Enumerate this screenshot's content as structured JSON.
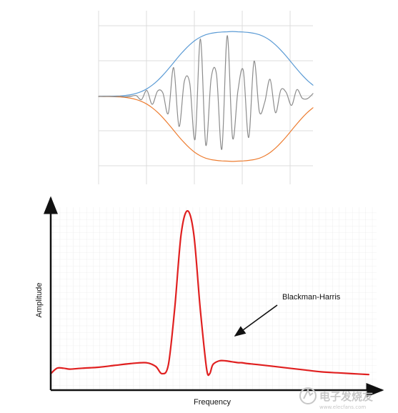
{
  "chart_data": [
    {
      "type": "line",
      "grid": true,
      "x": [
        -5,
        -4.75,
        -4.5,
        -4.25,
        -4,
        -3.75,
        -3.5,
        -3.25,
        -3,
        -2.75,
        -2.5,
        -2.25,
        -2,
        -1.75,
        -1.5,
        -1.25,
        -1,
        -0.75,
        -0.5,
        -0.25,
        0,
        0.25,
        0.5,
        0.75,
        1,
        1.25,
        1.5,
        1.75,
        2,
        2.25,
        2.5,
        2.75,
        3,
        3.25,
        3.5,
        3.75,
        4,
        4.25,
        4.5,
        4.75,
        5
      ],
      "xlim": [
        -5,
        5
      ],
      "ylim": [
        -1.1,
        1.1
      ],
      "series": [
        {
          "values": [
            0.0,
            0.001,
            0.002,
            0.004,
            0.008,
            0.015,
            0.027,
            0.047,
            0.076,
            0.118,
            0.174,
            0.244,
            0.328,
            0.422,
            0.521,
            0.621,
            0.713,
            0.795,
            0.863,
            0.914,
            0.95,
            0.972,
            0.985,
            0.992,
            0.996,
            1.0,
            0.996,
            0.992,
            0.985,
            0.972,
            0.95,
            0.914,
            0.863,
            0.795,
            0.713,
            0.621,
            0.521,
            0.422,
            0.328,
            0.244,
            0.174
          ],
          "color": "#5b9bd5"
        },
        {
          "values": [
            -0.0,
            -0.001,
            -0.002,
            -0.004,
            -0.008,
            -0.015,
            -0.027,
            -0.047,
            -0.076,
            -0.118,
            -0.174,
            -0.244,
            -0.328,
            -0.422,
            -0.521,
            -0.621,
            -0.713,
            -0.795,
            -0.863,
            -0.914,
            -0.95,
            -0.972,
            -0.985,
            -0.992,
            -0.996,
            -1.0,
            -0.996,
            -0.992,
            -0.985,
            -0.972,
            -0.95,
            -0.914,
            -0.863,
            -0.795,
            -0.713,
            -0.621,
            -0.521,
            -0.422,
            -0.328,
            -0.244,
            -0.174
          ],
          "color": "#ed7d31"
        },
        {
          "values": [
            0.0,
            0.0,
            0.001,
            -0.002,
            0.004,
            -0.005,
            0.001,
            0.014,
            -0.048,
            0.094,
            -0.121,
            0.083,
            0.053,
            -0.261,
            0.444,
            -0.461,
            0.234,
            0.207,
            -0.658,
            0.886,
            -0.749,
            0.279,
            0.338,
            -0.811,
            0.936,
            -0.638,
            0.089,
            0.4,
            -0.632,
            0.542,
            -0.236,
            -0.088,
            0.264,
            -0.25,
            0.099,
            0.063,
            -0.138,
            0.106,
            -0.027,
            -0.032,
            0.045
          ],
          "color": "#8c8c8c"
        }
      ]
    },
    {
      "type": "line",
      "title": "",
      "xlabel": "Frequency",
      "ylabel": "Amplitude",
      "grid": true,
      "x": [
        0,
        0.02,
        0.04,
        0.06,
        0.1,
        0.15,
        0.2,
        0.25,
        0.3,
        0.33,
        0.35,
        0.37,
        0.39,
        0.41,
        0.43,
        0.45,
        0.47,
        0.49,
        0.5,
        0.51,
        0.53,
        0.55,
        0.57,
        0.59,
        0.6,
        0.62,
        0.65,
        0.7,
        0.75,
        0.8,
        0.85,
        0.9,
        0.95,
        1.0
      ],
      "xlim": [
        0,
        1.0
      ],
      "ylim": [
        0,
        1.0
      ],
      "series": [
        {
          "values": [
            0.09,
            0.12,
            0.12,
            0.115,
            0.12,
            0.125,
            0.135,
            0.145,
            0.15,
            0.13,
            0.09,
            0.14,
            0.45,
            0.85,
            0.98,
            0.85,
            0.45,
            0.12,
            0.09,
            0.14,
            0.16,
            0.16,
            0.155,
            0.15,
            0.15,
            0.145,
            0.14,
            0.13,
            0.12,
            0.11,
            0.1,
            0.095,
            0.09,
            0.085
          ],
          "color": "#e02020"
        }
      ],
      "annotations": [
        {
          "text": "Blackman-Harris",
          "arrow_to": {
            "x": 0.51,
            "y": 0.35
          }
        }
      ]
    }
  ],
  "watermark": {
    "text": "电子发烧友",
    "sub": "www.elecfans.com",
    "color": "#c7c7c7"
  }
}
